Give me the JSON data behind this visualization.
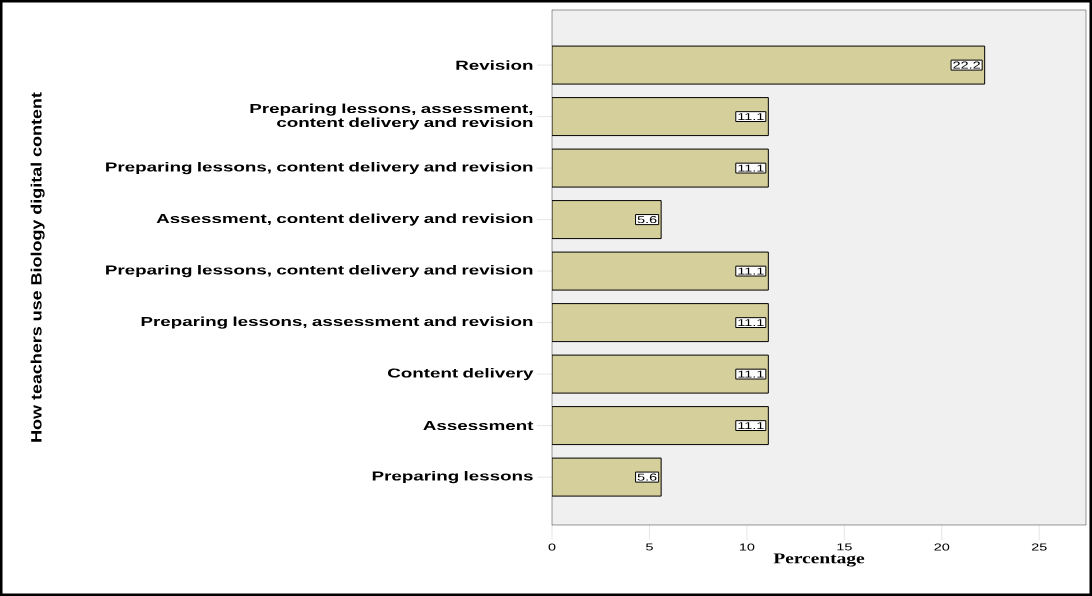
{
  "chart_data": {
    "type": "bar",
    "orientation": "horizontal",
    "ylabel": "How teachers use Biology digital content",
    "xlabel": "Percentage",
    "categories": [
      "Revision",
      "Preparing lessons, assessment, content delivery and revision",
      "Preparing lessons, content delivery and revision",
      "Assessment, content delivery and revision",
      "Preparing lessons, content delivery and revision",
      "Preparing lessons, assessment and revision",
      "Content delivery",
      "Assessment",
      "Preparing lessons"
    ],
    "values": [
      22.2,
      11.1,
      11.1,
      5.6,
      11.1,
      11.1,
      11.1,
      11.1,
      5.6
    ],
    "color": "#d5cf9b",
    "data_labels": true,
    "xlim": [
      0,
      27.4
    ],
    "xticks": [
      0,
      5,
      10,
      15,
      20,
      25
    ],
    "grid": false
  }
}
